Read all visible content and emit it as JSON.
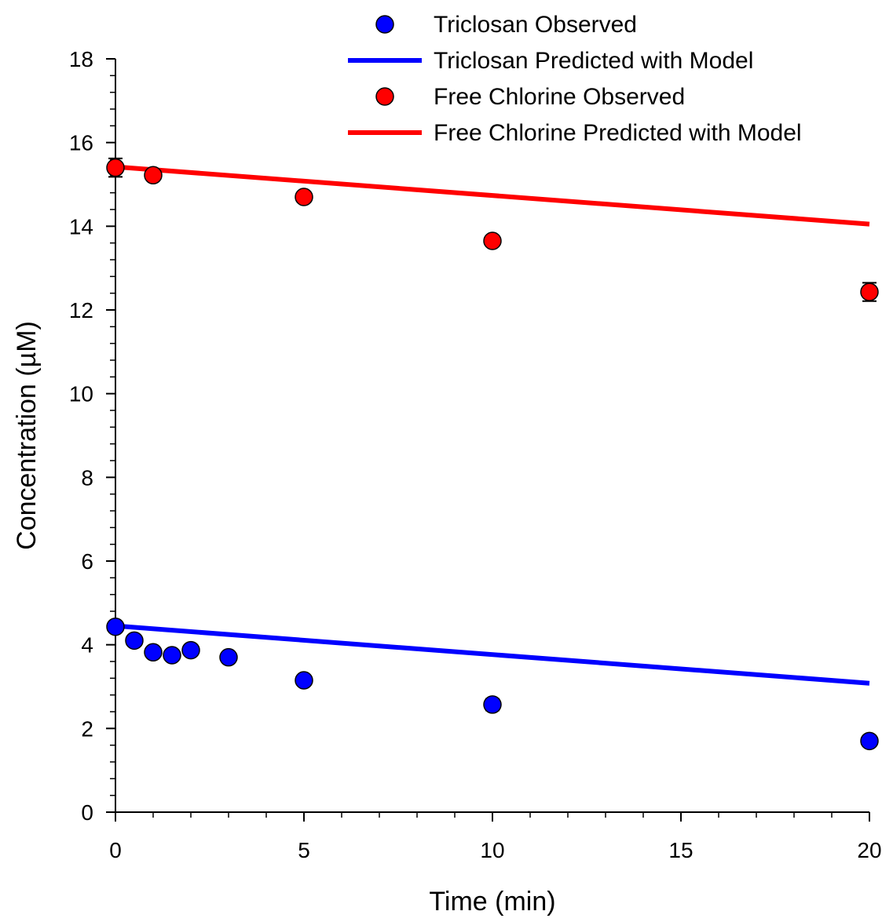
{
  "chart_data": {
    "type": "scatter",
    "xlabel": "Time (min)",
    "ylabel": "Concentration (µM)",
    "xlim": [
      0,
      20
    ],
    "ylim": [
      0,
      18
    ],
    "xticks": [
      0,
      5,
      10,
      15,
      20
    ],
    "yticks": [
      0,
      2,
      4,
      6,
      8,
      10,
      12,
      14,
      16,
      18
    ],
    "grid": false,
    "legend_position": "top-right",
    "series": [
      {
        "name": "Triclosan Observed",
        "kind": "scatter",
        "color": "#0000ff",
        "points": [
          {
            "x": 0,
            "y": 4.43,
            "err": 0.12
          },
          {
            "x": 0.5,
            "y": 4.1,
            "err": 0.1
          },
          {
            "x": 1,
            "y": 3.82,
            "err": 0.1
          },
          {
            "x": 1.5,
            "y": 3.75,
            "err": 0.1
          },
          {
            "x": 2,
            "y": 3.87,
            "err": 0.1
          },
          {
            "x": 3,
            "y": 3.7,
            "err": 0.1
          },
          {
            "x": 5,
            "y": 3.15,
            "err": 0.1
          },
          {
            "x": 10,
            "y": 2.57,
            "err": 0.14
          },
          {
            "x": 20,
            "y": 1.7,
            "err": 0.1
          }
        ]
      },
      {
        "name": "Triclosan Predicted with Model",
        "kind": "line",
        "color": "#0000ff",
        "points": [
          {
            "x": 0,
            "y": 4.45
          },
          {
            "x": 20,
            "y": 3.08
          }
        ]
      },
      {
        "name": "Free Chlorine Observed",
        "kind": "scatter",
        "color": "#ff0000",
        "points": [
          {
            "x": 0,
            "y": 15.4,
            "err": 0.22
          },
          {
            "x": 1,
            "y": 15.22,
            "err": 0.12
          },
          {
            "x": 5,
            "y": 14.7,
            "err": 0.1
          },
          {
            "x": 10,
            "y": 13.65,
            "err": 0.12
          },
          {
            "x": 20,
            "y": 12.43,
            "err": 0.22
          }
        ]
      },
      {
        "name": "Free Chlorine Predicted with Model",
        "kind": "line",
        "color": "#ff0000",
        "points": [
          {
            "x": 0,
            "y": 15.42
          },
          {
            "x": 20,
            "y": 14.05
          }
        ]
      }
    ]
  }
}
